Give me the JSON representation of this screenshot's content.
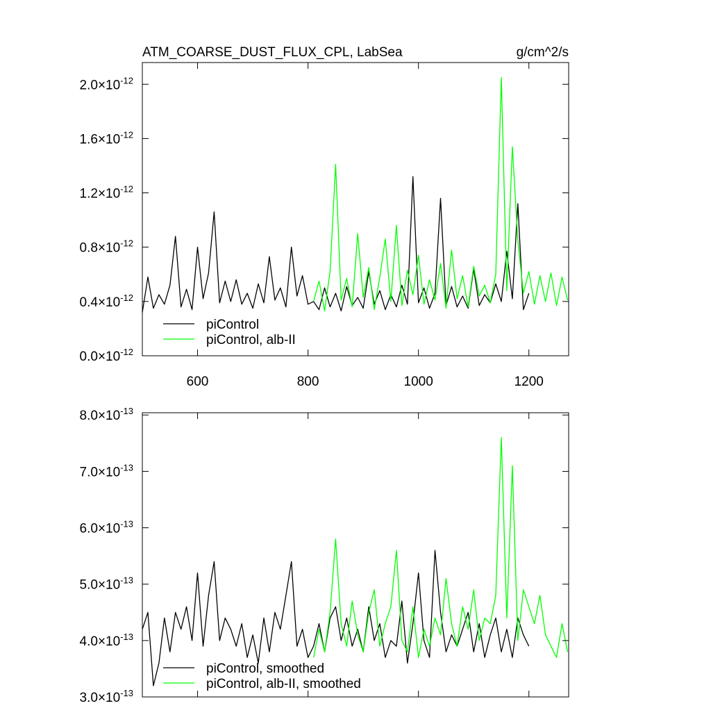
{
  "chart_data": [
    {
      "type": "line",
      "title": "ATM_COARSE_DUST_FLUX_CPL, LabSea",
      "units": "g/cm^2/s",
      "x": [
        500,
        510,
        520,
        530,
        540,
        550,
        560,
        570,
        580,
        590,
        600,
        610,
        620,
        630,
        640,
        650,
        660,
        670,
        680,
        690,
        700,
        710,
        720,
        730,
        740,
        750,
        760,
        770,
        780,
        790,
        800,
        810,
        820,
        830,
        840,
        850,
        860,
        870,
        880,
        890,
        900,
        910,
        920,
        930,
        940,
        950,
        960,
        970,
        980,
        990,
        1000,
        1010,
        1020,
        1030,
        1040,
        1050,
        1060,
        1070,
        1080,
        1090,
        1100,
        1110,
        1120,
        1130,
        1140,
        1150,
        1160,
        1170,
        1180,
        1190,
        1200,
        1210,
        1220,
        1230,
        1240,
        1250,
        1260,
        1270
      ],
      "xlim": [
        500,
        1272
      ],
      "xticks": [
        600,
        800,
        1000,
        1200
      ],
      "ylim": [
        0,
        2.16e-12
      ],
      "yticks": [
        {
          "value": 0,
          "label": "0.0×10^-12"
        },
        {
          "value": 4e-13,
          "label": "0.4×10^-12"
        },
        {
          "value": 8e-13,
          "label": "0.8×10^-12"
        },
        {
          "value": 1.2e-12,
          "label": "1.2×10^-12"
        },
        {
          "value": 1.6e-12,
          "label": "1.6×10^-12"
        },
        {
          "value": 2e-12,
          "label": "2.0×10^-12"
        }
      ],
      "series": [
        {
          "name": "piControl",
          "color": "#000000",
          "values": [
            3.2e-13,
            5.8e-13,
            3.5e-13,
            4.5e-13,
            3.8e-13,
            5.2e-13,
            8.8e-13,
            3.6e-13,
            4.9e-13,
            3.4e-13,
            8e-13,
            4.2e-13,
            6.1e-13,
            1.06e-12,
            3.9e-13,
            5.5e-13,
            4e-13,
            5.6e-13,
            3.8e-13,
            4.6e-13,
            3.5e-13,
            5.3e-13,
            3.9e-13,
            7.3e-13,
            4.1e-13,
            5e-13,
            3.6e-13,
            8e-13,
            4.4e-13,
            5.9e-13,
            3.8e-13,
            4e-13,
            3.4e-13,
            5e-13,
            3.6e-13,
            4.6e-13,
            3.3e-13,
            5.1e-13,
            3.7e-13,
            4.3e-13,
            3.5e-13,
            6.2e-13,
            3.8e-13,
            4.8e-13,
            3.4e-13,
            4.5e-13,
            3.6e-13,
            5.2e-13,
            3.8e-13,
            1.32e-12,
            3.9e-13,
            5e-13,
            3.5e-13,
            4.6e-13,
            1.16e-12,
            3.7e-13,
            5.1e-13,
            3.6e-13,
            4.4e-13,
            3.5e-13,
            6.4e-13,
            3.7e-13,
            4.5e-13,
            3.9e-13,
            5.3e-13,
            4e-13,
            7.7e-13,
            4.2e-13,
            1.12e-12,
            3.4e-13,
            4.6e-13,
            null,
            null,
            null,
            null,
            null,
            null,
            null
          ]
        },
        {
          "name": "piControl, alb-II",
          "color": "#00ff00",
          "values": [
            null,
            null,
            null,
            null,
            null,
            null,
            null,
            null,
            null,
            null,
            null,
            null,
            null,
            null,
            null,
            null,
            null,
            null,
            null,
            null,
            null,
            null,
            null,
            null,
            null,
            null,
            null,
            null,
            null,
            null,
            null,
            4e-13,
            5.5e-13,
            3.3e-13,
            6.2e-13,
            1.41e-12,
            4.1e-13,
            5.7e-13,
            3.6e-13,
            9e-13,
            4.3e-13,
            6.5e-13,
            3.4e-13,
            5.8e-13,
            8.6e-13,
            4e-13,
            9.6e-13,
            3.7e-13,
            6.3e-13,
            4.5e-13,
            7.4e-13,
            3.8e-13,
            5.6e-13,
            4.1e-13,
            6.8e-13,
            3.5e-13,
            7.8e-13,
            4.2e-13,
            5.9e-13,
            3.6e-13,
            6.6e-13,
            4.4e-13,
            5.2e-13,
            3.9e-13,
            6e-13,
            2.05e-12,
            4.8e-13,
            1.54e-12,
            8.5e-13,
            4.6e-13,
            6.2e-13,
            3.8e-13,
            5.9e-13,
            4e-13,
            6.1e-13,
            3.7e-13,
            5.8e-13,
            4.1e-13
          ]
        }
      ]
    },
    {
      "type": "line",
      "x": [
        500,
        510,
        520,
        530,
        540,
        550,
        560,
        570,
        580,
        590,
        600,
        610,
        620,
        630,
        640,
        650,
        660,
        670,
        680,
        690,
        700,
        710,
        720,
        730,
        740,
        750,
        760,
        770,
        780,
        790,
        800,
        810,
        820,
        830,
        840,
        850,
        860,
        870,
        880,
        890,
        900,
        910,
        920,
        930,
        940,
        950,
        960,
        970,
        980,
        990,
        1000,
        1010,
        1020,
        1030,
        1040,
        1050,
        1060,
        1070,
        1080,
        1090,
        1100,
        1110,
        1120,
        1130,
        1140,
        1150,
        1160,
        1170,
        1180,
        1190,
        1200,
        1210,
        1220,
        1230,
        1240,
        1250,
        1260,
        1270
      ],
      "xlim": [
        500,
        1272
      ],
      "xticks": [
        600,
        800,
        1000,
        1200
      ],
      "ylim": [
        3e-13,
        8.04e-13
      ],
      "yticks": [
        {
          "value": 3e-13,
          "label": "3.0×10^-13"
        },
        {
          "value": 4e-13,
          "label": "4.0×10^-13"
        },
        {
          "value": 5e-13,
          "label": "5.0×10^-13"
        },
        {
          "value": 6e-13,
          "label": "6.0×10^-13"
        },
        {
          "value": 7e-13,
          "label": "7.0×10^-13"
        },
        {
          "value": 8e-13,
          "label": "8.0×10^-13"
        }
      ],
      "series": [
        {
          "name": "piControl, smoothed",
          "color": "#000000",
          "values": [
            4.2e-13,
            4.5e-13,
            3.2e-13,
            3.6e-13,
            4.4e-13,
            3.8e-13,
            4.5e-13,
            4.2e-13,
            4.6e-13,
            4e-13,
            5.2e-13,
            3.9e-13,
            4.8e-13,
            5.4e-13,
            4e-13,
            4.4e-13,
            4.2e-13,
            3.9e-13,
            4.3e-13,
            3.7e-13,
            4.1e-13,
            3.6e-13,
            4.4e-13,
            3.8e-13,
            4.5e-13,
            4.2e-13,
            4.8e-13,
            5.4e-13,
            3.9e-13,
            4.2e-13,
            3.7e-13,
            3.9e-13,
            4.3e-13,
            3.8e-13,
            4.4e-13,
            4.6e-13,
            4e-13,
            4.4e-13,
            3.9e-13,
            4.2e-13,
            3.8e-13,
            4.6e-13,
            4e-13,
            4.3e-13,
            3.7e-13,
            4e-13,
            3.9e-13,
            4.7e-13,
            3.6e-13,
            4.3e-13,
            5.2e-13,
            4e-13,
            3.7e-13,
            5.6e-13,
            4.5e-13,
            3.8e-13,
            4.1e-13,
            3.9e-13,
            4.2e-13,
            4.5e-13,
            3.8e-13,
            4.3e-13,
            3.7e-13,
            4.1e-13,
            4.4e-13,
            3.8e-13,
            4.2e-13,
            3.7e-13,
            4.4e-13,
            4.1e-13,
            3.9e-13,
            null,
            null,
            null,
            null,
            null,
            null,
            null
          ]
        },
        {
          "name": "piControl, alb-II, smoothed",
          "color": "#00ff00",
          "values": [
            null,
            null,
            null,
            null,
            null,
            null,
            null,
            null,
            null,
            null,
            null,
            null,
            null,
            null,
            null,
            null,
            null,
            null,
            null,
            null,
            null,
            null,
            null,
            null,
            null,
            null,
            null,
            null,
            null,
            null,
            null,
            3.7e-13,
            4.2e-13,
            3.8e-13,
            4.5e-13,
            5.8e-13,
            4.3e-13,
            3.9e-13,
            4.7e-13,
            4.1e-13,
            3.8e-13,
            4.5e-13,
            4.9e-13,
            3.9e-13,
            4.3e-13,
            4.6e-13,
            5.6e-13,
            4e-13,
            3.8e-13,
            4.6e-13,
            3.7e-13,
            4.2e-13,
            3.9e-13,
            4.4e-13,
            4.1e-13,
            5.1e-13,
            4.3e-13,
            3.9e-13,
            4.6e-13,
            4.2e-13,
            4.9e-13,
            4e-13,
            4.4e-13,
            4.3e-13,
            4.8e-13,
            7.6e-13,
            4.4e-13,
            7.1e-13,
            4e-13,
            4.9e-13,
            4.6e-13,
            4.3e-13,
            4.8e-13,
            4.1e-13,
            3.9e-13,
            3.7e-13,
            4.3e-13,
            3.8e-13
          ]
        }
      ]
    }
  ]
}
